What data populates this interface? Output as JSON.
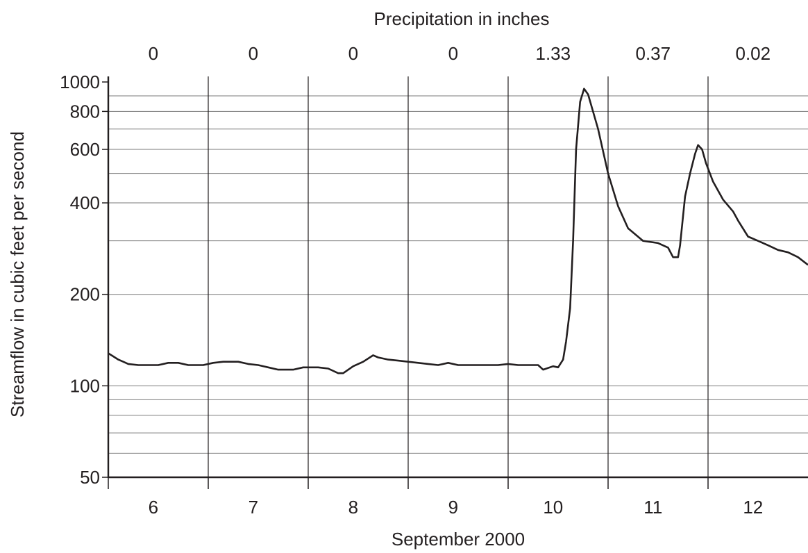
{
  "chart_data": {
    "type": "line",
    "title": "",
    "top_axis_title": "Precipitation in inches",
    "xlabel": "September 2000",
    "ylabel": "Streamflow in cubic feet per second",
    "y_scale": "log",
    "ylim": [
      50,
      1000
    ],
    "xlim": [
      6,
      13
    ],
    "y_ticks": [
      50,
      100,
      200,
      400,
      600,
      800,
      1000
    ],
    "y_tick_labels": [
      "50",
      "100",
      "200",
      "400",
      "600",
      "800",
      "1000"
    ],
    "y_gridlines": [
      60,
      70,
      80,
      90,
      100,
      200,
      300,
      400,
      500,
      600,
      700,
      800,
      900
    ],
    "categories": [
      "6",
      "7",
      "8",
      "9",
      "10",
      "11",
      "12"
    ],
    "precipitation": [
      "0",
      "0",
      "0",
      "0",
      "1.33",
      "0.37",
      "0.02"
    ],
    "grid": true,
    "legend": "none",
    "series": [
      {
        "x": [
          6.0,
          6.05,
          6.1,
          6.15,
          6.2,
          6.3,
          6.4,
          6.5,
          6.6,
          6.65,
          6.7,
          6.8,
          6.95,
          7.05,
          7.15,
          7.3,
          7.4,
          7.5,
          7.6,
          7.7,
          7.75,
          7.85,
          7.95,
          8.0,
          8.1,
          8.2,
          8.3,
          8.35,
          8.45,
          8.55,
          8.65,
          8.7,
          8.8,
          8.9,
          9.0,
          9.1,
          9.2,
          9.3,
          9.4,
          9.5,
          9.6,
          9.7,
          9.8,
          9.9,
          10.0,
          10.1,
          10.2,
          10.3,
          10.35,
          10.45,
          10.5,
          10.55,
          10.58,
          10.62,
          10.65,
          10.68,
          10.72,
          10.76,
          10.8,
          10.9,
          11.0,
          11.1,
          11.2,
          11.35,
          11.5,
          11.6,
          11.65,
          11.7,
          11.72,
          11.77,
          11.82,
          11.87,
          11.9,
          11.94,
          11.98,
          12.05,
          12.15,
          12.25,
          12.3,
          12.4,
          12.5,
          12.6,
          12.7,
          12.8,
          12.9,
          13.0
        ],
        "y": [
          128,
          125,
          122,
          120,
          118,
          117,
          117,
          117,
          119,
          119,
          119,
          117,
          117,
          119,
          120,
          120,
          118,
          117,
          115,
          113,
          113,
          113,
          115,
          115,
          115,
          114,
          110,
          110,
          116,
          120,
          126,
          124,
          122,
          121,
          120,
          119,
          118,
          117,
          119,
          117,
          117,
          117,
          117,
          117,
          118,
          117,
          117,
          117,
          113,
          116,
          115,
          122,
          140,
          180,
          300,
          600,
          860,
          950,
          910,
          700,
          500,
          390,
          330,
          300,
          295,
          285,
          265,
          265,
          290,
          420,
          500,
          580,
          620,
          600,
          540,
          470,
          410,
          375,
          350,
          310,
          300,
          290,
          280,
          275,
          265,
          250
        ]
      }
    ]
  }
}
